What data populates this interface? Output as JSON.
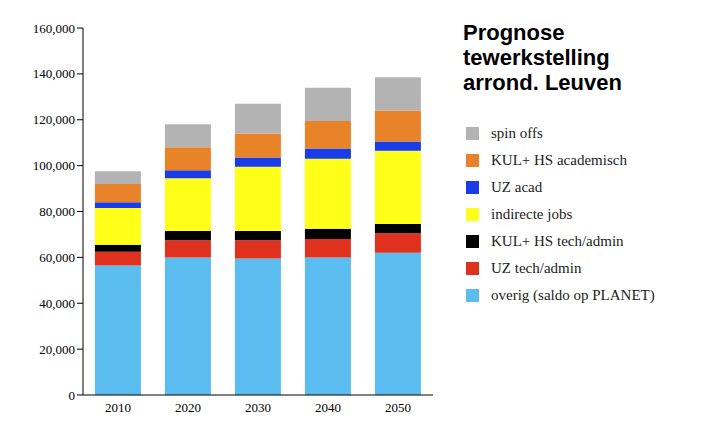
{
  "chart_data": {
    "type": "bar",
    "title": "Prognose tewerkstelling arrond. Leuven",
    "categories": [
      "2010",
      "2020",
      "2030",
      "2040",
      "2050"
    ],
    "stacked": true,
    "grid": false,
    "legend": "right",
    "ylim": [
      0,
      160000
    ],
    "yticks": [
      {
        "value": 0,
        "label": "0"
      },
      {
        "value": 20000,
        "label": "20,000"
      },
      {
        "value": 40000,
        "label": "40,000"
      },
      {
        "value": 60000,
        "label": "60,000"
      },
      {
        "value": 80000,
        "label": "80,000"
      },
      {
        "value": 100000,
        "label": "100,000"
      },
      {
        "value": 120000,
        "label": "120,000"
      },
      {
        "value": 140000,
        "label": "140,000"
      },
      {
        "value": 160000,
        "label": "160,000"
      }
    ],
    "series": [
      {
        "name": "overig (saldo op PLANET)",
        "color": "#5bbcf0",
        "values": [
          56500,
          60000,
          59500,
          60000,
          62000
        ]
      },
      {
        "name": "UZ tech/admin",
        "color": "#e0301e",
        "values": [
          6000,
          7500,
          8000,
          8000,
          8500
        ]
      },
      {
        "name": "KUL+ HS tech/admin",
        "color": "#000000",
        "values": [
          3000,
          4000,
          4000,
          4500,
          4000
        ]
      },
      {
        "name": "indirecte jobs",
        "color": "#ffff1a",
        "values": [
          16000,
          23000,
          28000,
          30500,
          32000
        ]
      },
      {
        "name": "UZ acad",
        "color": "#1a3be8",
        "values": [
          2500,
          3500,
          4000,
          4500,
          4000
        ]
      },
      {
        "name": "KUL+ HS academisch",
        "color": "#e8832a",
        "values": [
          8000,
          10000,
          10500,
          12000,
          13500
        ]
      },
      {
        "name": "spin offs",
        "color": "#b3b3b3",
        "values": [
          5500,
          10000,
          13000,
          14500,
          14500
        ]
      }
    ]
  }
}
